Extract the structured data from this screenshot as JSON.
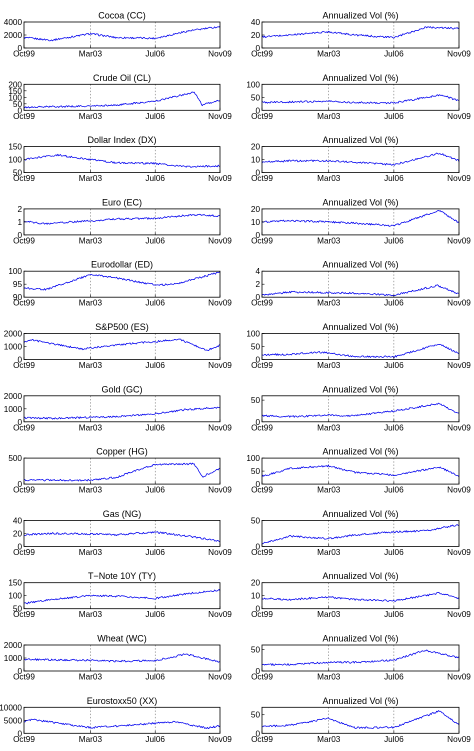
{
  "chart_data": [
    {
      "type": "line",
      "title": "Cocoa (CC)",
      "xticks": [
        "Oct99",
        "Mar03",
        "Jul06",
        "Nov09"
      ],
      "yticks": [
        0,
        2000,
        4000
      ],
      "ylim": [
        0,
        4000
      ],
      "grid": "vertical-dotted",
      "series": [
        {
          "x": [
            "Oct99",
            "Mar01",
            "Mar03",
            "Jul04",
            "Jul06",
            "Mar08",
            "Nov09"
          ],
          "values": [
            1600,
            1200,
            2200,
            1600,
            1500,
            2600,
            3300
          ]
        }
      ]
    },
    {
      "type": "line",
      "title": "Annualized Vol (%)",
      "xticks": [
        "Oct99",
        "Mar03",
        "Jul06",
        "Nov09"
      ],
      "yticks": [
        0,
        20,
        40
      ],
      "ylim": [
        0,
        40
      ],
      "grid": "vertical-dotted",
      "series": [
        {
          "x": [
            "Oct99",
            "Mar01",
            "Mar03",
            "Jul04",
            "Jul06",
            "Mar08",
            "Nov09"
          ],
          "values": [
            17,
            20,
            25,
            20,
            16,
            32,
            30
          ]
        }
      ]
    },
    {
      "type": "line",
      "title": "Crude Oil (CL)",
      "xticks": [
        "Oct99",
        "Mar03",
        "Jul06",
        "Nov09"
      ],
      "yticks": [
        0,
        50,
        100,
        150,
        200
      ],
      "ylim": [
        0,
        200
      ],
      "grid": "vertical-dotted",
      "series": [
        {
          "x": [
            "Oct99",
            "Mar01",
            "Mar03",
            "Jul04",
            "Jul06",
            "Jul08",
            "Dec08",
            "Nov09"
          ],
          "values": [
            22,
            28,
            32,
            40,
            70,
            140,
            40,
            78
          ]
        }
      ]
    },
    {
      "type": "line",
      "title": "Annualized Vol (%)",
      "xticks": [
        "Oct99",
        "Mar03",
        "Jul06",
        "Nov09"
      ],
      "yticks": [
        0,
        50,
        100
      ],
      "ylim": [
        0,
        100
      ],
      "grid": "vertical-dotted",
      "series": [
        {
          "x": [
            "Oct99",
            "Mar01",
            "Mar03",
            "Jul04",
            "Jul06",
            "Dec08",
            "Nov09"
          ],
          "values": [
            30,
            32,
            35,
            30,
            28,
            60,
            35
          ]
        }
      ]
    },
    {
      "type": "line",
      "title": "Dollar Index (DX)",
      "xticks": [
        "Oct99",
        "Mar03",
        "Jul06",
        "Nov09"
      ],
      "yticks": [
        50,
        100,
        150
      ],
      "ylim": [
        50,
        150
      ],
      "grid": "vertical-dotted",
      "series": [
        {
          "x": [
            "Oct99",
            "Jul01",
            "Mar03",
            "Jul04",
            "Jul06",
            "Mar08",
            "Nov09"
          ],
          "values": [
            100,
            118,
            100,
            88,
            85,
            72,
            76
          ]
        }
      ]
    },
    {
      "type": "line",
      "title": "Annualized Vol (%)",
      "xticks": [
        "Oct99",
        "Mar03",
        "Jul06",
        "Nov09"
      ],
      "yticks": [
        0,
        10,
        20
      ],
      "ylim": [
        0,
        20
      ],
      "grid": "vertical-dotted",
      "series": [
        {
          "x": [
            "Oct99",
            "Mar01",
            "Mar03",
            "Jul04",
            "Jul06",
            "Nov08",
            "Nov09"
          ],
          "values": [
            8,
            9,
            9,
            8,
            6,
            15,
            9
          ]
        }
      ]
    },
    {
      "type": "line",
      "title": "Euro (EC)",
      "xticks": [
        "Oct99",
        "Mar03",
        "Jul06",
        "Nov09"
      ],
      "yticks": [
        0,
        1,
        2
      ],
      "ylim": [
        0,
        2
      ],
      "grid": "vertical-dotted",
      "series": [
        {
          "x": [
            "Oct99",
            "Oct00",
            "Mar03",
            "Jul04",
            "Jul06",
            "Jul08",
            "Nov09"
          ],
          "values": [
            1.05,
            0.86,
            1.08,
            1.22,
            1.27,
            1.55,
            1.45
          ]
        }
      ]
    },
    {
      "type": "line",
      "title": "Annualized Vol (%)",
      "xticks": [
        "Oct99",
        "Mar03",
        "Jul06",
        "Nov09"
      ],
      "yticks": [
        0,
        10,
        20
      ],
      "ylim": [
        0,
        20
      ],
      "grid": "vertical-dotted",
      "series": [
        {
          "x": [
            "Oct99",
            "Mar01",
            "Mar03",
            "Jul04",
            "Jul06",
            "Nov08",
            "Nov09"
          ],
          "values": [
            10,
            11,
            10,
            9,
            7,
            19,
            9
          ]
        }
      ]
    },
    {
      "type": "line",
      "title": "Eurodollar (ED)",
      "xticks": [
        "Oct99",
        "Mar03",
        "Jul06",
        "Nov09"
      ],
      "yticks": [
        90,
        95,
        100
      ],
      "ylim": [
        90,
        100
      ],
      "grid": "vertical-dotted",
      "series": [
        {
          "x": [
            "Oct99",
            "Dec00",
            "Mar03",
            "Jul04",
            "Jul06",
            "Jul07",
            "Nov09"
          ],
          "values": [
            93.5,
            93,
            98.7,
            97.5,
            94.7,
            95,
            99.6
          ]
        }
      ]
    },
    {
      "type": "line",
      "title": "Annualized Vol (%)",
      "xticks": [
        "Oct99",
        "Mar03",
        "Jul06",
        "Nov09"
      ],
      "yticks": [
        0,
        2,
        4
      ],
      "ylim": [
        0,
        4
      ],
      "grid": "vertical-dotted",
      "series": [
        {
          "x": [
            "Oct99",
            "Mar01",
            "Mar03",
            "Jul04",
            "Jul06",
            "Oct08",
            "Nov09"
          ],
          "values": [
            0.3,
            0.8,
            0.7,
            0.6,
            0.3,
            1.8,
            0.5
          ]
        }
      ]
    },
    {
      "type": "line",
      "title": "S&P500 (ES)",
      "xticks": [
        "Oct99",
        "Mar03",
        "Jul06",
        "Nov09"
      ],
      "yticks": [
        0,
        1000,
        2000
      ],
      "ylim": [
        0,
        2000
      ],
      "grid": "vertical-dotted",
      "series": [
        {
          "x": [
            "Oct99",
            "Mar00",
            "Oct02",
            "Jul04",
            "Oct07",
            "Mar09",
            "Nov09"
          ],
          "values": [
            1350,
            1500,
            800,
            1120,
            1550,
            700,
            1100
          ]
        }
      ]
    },
    {
      "type": "line",
      "title": "Annualized Vol (%)",
      "xticks": [
        "Oct99",
        "Mar03",
        "Jul06",
        "Nov09"
      ],
      "yticks": [
        0,
        50,
        100
      ],
      "ylim": [
        0,
        100
      ],
      "grid": "vertical-dotted",
      "series": [
        {
          "x": [
            "Oct99",
            "Mar01",
            "Oct02",
            "Jul04",
            "Jul06",
            "Nov08",
            "Nov09"
          ],
          "values": [
            18,
            20,
            28,
            12,
            10,
            60,
            22
          ]
        }
      ]
    },
    {
      "type": "line",
      "title": "Gold (GC)",
      "xticks": [
        "Oct99",
        "Mar03",
        "Jul06",
        "Nov09"
      ],
      "yticks": [
        0,
        1000,
        2000
      ],
      "ylim": [
        0,
        2000
      ],
      "grid": "vertical-dotted",
      "series": [
        {
          "x": [
            "Oct99",
            "Mar01",
            "Mar03",
            "Jul04",
            "Jul06",
            "Mar08",
            "Nov09"
          ],
          "values": [
            300,
            270,
            340,
            400,
            620,
            950,
            1100
          ]
        }
      ]
    },
    {
      "type": "line",
      "title": "Annualized Vol (%)",
      "xticks": [
        "Oct99",
        "Mar03",
        "Jul06",
        "Nov09"
      ],
      "yticks": [
        0,
        50
      ],
      "ylim": [
        0,
        60
      ],
      "grid": "vertical-dotted",
      "series": [
        {
          "x": [
            "Oct99",
            "Mar01",
            "Mar03",
            "Jul04",
            "Jul06",
            "Nov08",
            "Nov09"
          ],
          "values": [
            14,
            12,
            15,
            14,
            25,
            42,
            18
          ]
        }
      ]
    },
    {
      "type": "line",
      "title": "Copper (HG)",
      "xticks": [
        "Oct99",
        "Mar03",
        "Jul06",
        "Nov09"
      ],
      "yticks": [
        0,
        500
      ],
      "ylim": [
        0,
        500
      ],
      "grid": "vertical-dotted",
      "series": [
        {
          "x": [
            "Oct99",
            "Mar01",
            "Mar03",
            "Jul04",
            "Jul06",
            "Jul08",
            "Dec08",
            "Nov09"
          ],
          "values": [
            80,
            75,
            75,
            130,
            380,
            390,
            140,
            300
          ]
        }
      ]
    },
    {
      "type": "line",
      "title": "Annualized Vol (%)",
      "xticks": [
        "Oct99",
        "Mar03",
        "Jul06",
        "Nov09"
      ],
      "yticks": [
        0,
        50,
        100
      ],
      "ylim": [
        0,
        100
      ],
      "grid": "vertical-dotted",
      "series": [
        {
          "x": [
            "Oct99",
            "Mar01",
            "Mar03",
            "Jul04",
            "Jul06",
            "Nov08",
            "Nov09"
          ],
          "values": [
            30,
            60,
            70,
            45,
            35,
            65,
            30
          ]
        }
      ]
    },
    {
      "type": "line",
      "title": "Gas (NG)",
      "xticks": [
        "Oct99",
        "Mar03",
        "Jul06",
        "Nov09"
      ],
      "yticks": [
        0,
        20,
        40
      ],
      "ylim": [
        0,
        40
      ],
      "grid": "vertical-dotted",
      "series": [
        {
          "x": [
            "Oct99",
            "Mar01",
            "Mar03",
            "Jul04",
            "Jul06",
            "Mar08",
            "Nov09"
          ],
          "values": [
            18,
            20,
            19,
            18,
            22,
            16,
            8
          ]
        }
      ]
    },
    {
      "type": "line",
      "title": "Annualized Vol (%)",
      "xticks": [
        "Oct99",
        "Mar03",
        "Jul06",
        "Nov09"
      ],
      "yticks": [
        0,
        50
      ],
      "ylim": [
        0,
        50
      ],
      "grid": "vertical-dotted",
      "series": [
        {
          "x": [
            "Oct99",
            "Mar01",
            "Mar03",
            "Jul04",
            "Jul06",
            "Mar08",
            "Nov09"
          ],
          "values": [
            5,
            20,
            15,
            22,
            28,
            30,
            42
          ]
        }
      ]
    },
    {
      "type": "line",
      "title": "T−Note 10Y (TY)",
      "xticks": [
        "Oct99",
        "Mar03",
        "Jul06",
        "Nov09"
      ],
      "yticks": [
        50,
        100,
        150
      ],
      "ylim": [
        50,
        150
      ],
      "grid": "vertical-dotted",
      "series": [
        {
          "x": [
            "Oct99",
            "Mar01",
            "Mar03",
            "Jul04",
            "Jul06",
            "Mar08",
            "Nov09"
          ],
          "values": [
            70,
            85,
            100,
            98,
            90,
            108,
            122
          ]
        }
      ]
    },
    {
      "type": "line",
      "title": "Annualized Vol (%)",
      "xticks": [
        "Oct99",
        "Mar03",
        "Jul06",
        "Nov09"
      ],
      "yticks": [
        0,
        10,
        20
      ],
      "ylim": [
        0,
        20
      ],
      "grid": "vertical-dotted",
      "series": [
        {
          "x": [
            "Oct99",
            "Mar01",
            "Mar03",
            "Jul04",
            "Jul06",
            "Nov08",
            "Nov09"
          ],
          "values": [
            8,
            7,
            9,
            7,
            6,
            12,
            8
          ]
        }
      ]
    },
    {
      "type": "line",
      "title": "Wheat (WC)",
      "xticks": [
        "Oct99",
        "Mar03",
        "Jul06",
        "Nov09"
      ],
      "yticks": [
        0,
        1000,
        2000
      ],
      "ylim": [
        0,
        2000
      ],
      "grid": "vertical-dotted",
      "series": [
        {
          "x": [
            "Oct99",
            "Mar01",
            "Mar03",
            "Jul04",
            "Jul06",
            "Feb08",
            "Nov09"
          ],
          "values": [
            900,
            860,
            820,
            750,
            800,
            1300,
            680
          ]
        }
      ]
    },
    {
      "type": "line",
      "title": "Annualized Vol (%)",
      "xticks": [
        "Oct99",
        "Mar03",
        "Jul06",
        "Nov09"
      ],
      "yticks": [
        0,
        50
      ],
      "ylim": [
        0,
        60
      ],
      "grid": "vertical-dotted",
      "series": [
        {
          "x": [
            "Oct99",
            "Mar01",
            "Mar03",
            "Jul04",
            "Jul06",
            "Feb08",
            "Nov09"
          ],
          "values": [
            15,
            15,
            20,
            20,
            25,
            48,
            30
          ]
        }
      ]
    },
    {
      "type": "line",
      "title": "Eurostoxx50 (XX)",
      "xticks": [
        "Oct99",
        "Mar03",
        "Jul06",
        "Nov09"
      ],
      "yticks": [
        0,
        5000,
        10000
      ],
      "ylim": [
        0,
        10000
      ],
      "grid": "vertical-dotted",
      "series": [
        {
          "x": [
            "Oct99",
            "Mar00",
            "Mar03",
            "Jul04",
            "Jul07",
            "Mar09",
            "Nov09"
          ],
          "values": [
            4500,
            5300,
            2200,
            2800,
            4400,
            2000,
            2900
          ]
        }
      ]
    },
    {
      "type": "line",
      "title": "Annualized Vol (%)",
      "xticks": [
        "Oct99",
        "Mar03",
        "Jul06",
        "Nov09"
      ],
      "yticks": [
        0,
        50
      ],
      "ylim": [
        0,
        70
      ],
      "grid": "vertical-dotted",
      "series": [
        {
          "x": [
            "Oct99",
            "Mar01",
            "Mar03",
            "Jul04",
            "Jul06",
            "Nov08",
            "Nov09"
          ],
          "values": [
            18,
            22,
            40,
            15,
            16,
            60,
            22
          ]
        }
      ]
    }
  ]
}
